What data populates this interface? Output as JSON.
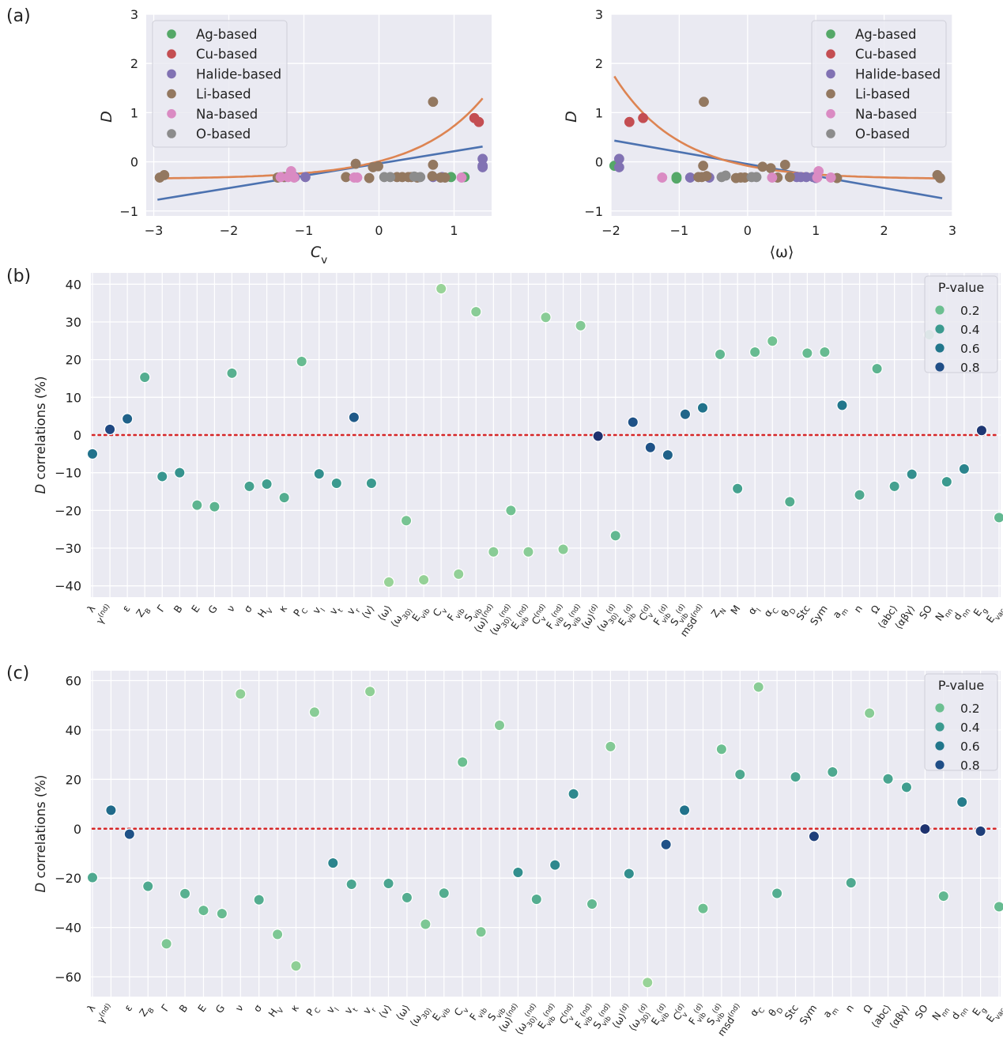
{
  "panel_labels": [
    "(a)",
    "(b)",
    "(c)"
  ],
  "colors": {
    "Ag-based": "#55a868",
    "Cu-based": "#c44e52",
    "Halide-based": "#8172b3",
    "Li-based": "#937860",
    "Na-based": "#da8bc3",
    "O-based": "#8c8c8c",
    "linear_fit": "#4c72b0",
    "exp_fit": "#dd8452",
    "zero_line": "#d62728",
    "plot_bg": "#eaeaf2"
  },
  "pvalue_colormap": [
    "#a6d99a",
    "#6cbf91",
    "#3b9a8f",
    "#21768b",
    "#1f4e87",
    "#1e2f6c"
  ],
  "chart_data": [
    {
      "type": "scatter",
      "panel": "(a)",
      "xlabel": "C_v",
      "ylabel": "D",
      "xlim": [
        -3.1,
        1.5
      ],
      "ylim": [
        -1.1,
        3.0
      ],
      "xticks": [
        -3,
        -2,
        -1,
        0,
        1
      ],
      "yticks": [
        -1,
        0,
        1,
        2,
        3
      ],
      "grid": true,
      "legend_position": "top-left",
      "series": [
        {
          "name": "Ag-based",
          "points": [
            [
              0.96,
              -0.31
            ],
            [
              1.14,
              -0.31
            ]
          ]
        },
        {
          "name": "Cu-based",
          "points": [
            [
              1.27,
              0.89
            ],
            [
              1.33,
              0.81
            ]
          ]
        },
        {
          "name": "Halide-based",
          "points": [
            [
              -1.25,
              -0.31
            ],
            [
              -1.12,
              -0.31
            ],
            [
              -0.98,
              -0.31
            ],
            [
              0.72,
              -0.31
            ],
            [
              0.84,
              -0.31
            ],
            [
              1.38,
              0.06
            ],
            [
              1.38,
              -0.08
            ],
            [
              1.38,
              -0.11
            ]
          ]
        },
        {
          "name": "Li-based",
          "points": [
            [
              -2.92,
              -0.32
            ],
            [
              -2.86,
              -0.27
            ],
            [
              -1.35,
              -0.32
            ],
            [
              -1.27,
              -0.31
            ],
            [
              -0.44,
              -0.31
            ],
            [
              -0.31,
              -0.04
            ],
            [
              -0.13,
              -0.33
            ],
            [
              -0.08,
              -0.11
            ],
            [
              -0.01,
              -0.09
            ],
            [
              0.24,
              -0.31
            ],
            [
              0.31,
              -0.31
            ],
            [
              0.39,
              -0.31
            ],
            [
              0.43,
              -0.31
            ],
            [
              0.51,
              -0.32
            ],
            [
              0.71,
              -0.29
            ],
            [
              0.72,
              -0.06
            ],
            [
              0.72,
              1.22
            ],
            [
              0.82,
              -0.32
            ],
            [
              0.88,
              -0.32
            ]
          ]
        },
        {
          "name": "Na-based",
          "points": [
            [
              -1.31,
              -0.31
            ],
            [
              -1.21,
              -0.31
            ],
            [
              -1.17,
              -0.19
            ],
            [
              -1.13,
              -0.32
            ],
            [
              -0.33,
              -0.32
            ],
            [
              -0.29,
              -0.32
            ],
            [
              1.1,
              -0.32
            ]
          ]
        },
        {
          "name": "O-based",
          "points": [
            [
              0.07,
              -0.31
            ],
            [
              0.15,
              -0.31
            ],
            [
              0.47,
              -0.3
            ],
            [
              0.55,
              -0.31
            ]
          ]
        }
      ],
      "fits": [
        {
          "kind": "linear",
          "x_range": [
            -2.95,
            1.38
          ],
          "y_range": [
            -0.77,
            0.31
          ]
        },
        {
          "kind": "exponential",
          "equation": "D = -0.35 + 0.5*exp(1.1*(x - 0.3))",
          "x_range": [
            -2.95,
            1.38
          ]
        }
      ]
    },
    {
      "type": "scatter",
      "panel": "(a)",
      "xlabel": "⟨ω⟩",
      "ylabel": "D",
      "xlim": [
        -2.0,
        3.0
      ],
      "ylim": [
        -1.1,
        3.0
      ],
      "xticks": [
        -2,
        -1,
        0,
        1,
        2,
        3
      ],
      "yticks": [
        -1,
        0,
        1,
        2,
        3
      ],
      "grid": true,
      "legend_position": "top-right",
      "series": [
        {
          "name": "Ag-based",
          "points": [
            [
              -1.95,
              -0.08
            ],
            [
              -1.04,
              -0.31
            ],
            [
              -1.04,
              -0.34
            ]
          ]
        },
        {
          "name": "Cu-based",
          "points": [
            [
              -1.73,
              0.81
            ],
            [
              -1.53,
              0.89
            ]
          ]
        },
        {
          "name": "Halide-based",
          "points": [
            [
              -1.88,
              0.06
            ],
            [
              -1.88,
              -0.11
            ],
            [
              -0.84,
              -0.32
            ],
            [
              -0.56,
              -0.32
            ],
            [
              0.72,
              -0.31
            ],
            [
              0.78,
              -0.31
            ],
            [
              0.86,
              -0.31
            ],
            [
              0.96,
              -0.31
            ],
            [
              1.0,
              -0.33
            ]
          ]
        },
        {
          "name": "Li-based",
          "points": [
            [
              -0.72,
              -0.31
            ],
            [
              -0.67,
              -0.31
            ],
            [
              -0.65,
              -0.08
            ],
            [
              -0.64,
              1.22
            ],
            [
              -0.6,
              -0.29
            ],
            [
              -0.17,
              -0.33
            ],
            [
              -0.1,
              -0.32
            ],
            [
              -0.04,
              -0.32
            ],
            [
              0.22,
              -0.1
            ],
            [
              0.34,
              -0.13
            ],
            [
              0.44,
              -0.32
            ],
            [
              0.55,
              -0.06
            ],
            [
              0.62,
              -0.31
            ],
            [
              1.31,
              -0.33
            ],
            [
              2.78,
              -0.27
            ],
            [
              2.82,
              -0.33
            ]
          ]
        },
        {
          "name": "Na-based",
          "points": [
            [
              -1.25,
              -0.32
            ],
            [
              0.36,
              -0.32
            ],
            [
              1.02,
              -0.32
            ],
            [
              1.04,
              -0.19
            ],
            [
              1.22,
              -0.32
            ]
          ]
        },
        {
          "name": "O-based",
          "points": [
            [
              -0.38,
              -0.31
            ],
            [
              -0.32,
              -0.28
            ],
            [
              0.06,
              -0.31
            ],
            [
              0.13,
              -0.31
            ]
          ]
        }
      ],
      "fits": [
        {
          "kind": "linear",
          "x_range": [
            -1.95,
            2.85
          ],
          "y_range": [
            0.43,
            -0.74
          ]
        },
        {
          "kind": "exponential",
          "equation": "D = -0.35 + 0.41*exp(-1.05*(x + 0.4))",
          "x_range": [
            -1.95,
            2.85
          ]
        }
      ]
    },
    {
      "type": "scatter",
      "panel": "(b)",
      "ylabel": "D correlations (%)",
      "ylim": [
        -43,
        43
      ],
      "yticks": [
        -40,
        -30,
        -20,
        -10,
        0,
        10,
        20,
        30,
        40
      ],
      "grid": true,
      "reference_line": 0,
      "legend_title": "P-value",
      "legend_entries": [
        0.2,
        0.4,
        0.6,
        0.8
      ],
      "legend_position": "top-right",
      "categories": [
        "λ",
        "γ^(nd)",
        "ε",
        "Z_B",
        "Γ",
        "B",
        "E",
        "G",
        "ν",
        "σ",
        "H_V",
        "κ",
        "P_C",
        "v_l",
        "v_t",
        "v_r",
        "⟨v⟩",
        "⟨ω⟩",
        "⟨ω_30⟩",
        "E_vib",
        "C_v",
        "F_vib",
        "S_vib",
        "⟨ω⟩^(nd)",
        "⟨ω_30⟩^(nd)",
        "E_vib^(nd)",
        "C_v^(nd)",
        "F_vib^(nd)",
        "S_vib^(nd)",
        "⟨ω⟩^(d)",
        "⟨ω_30⟩^(d)",
        "E_vib^(d)",
        "C_v^(d)",
        "F_vib^(d)",
        "S_vib^(d)",
        "msd^(nd)",
        "Z_N",
        "M",
        "α_l",
        "α_C",
        "θ_D",
        "Stc",
        "Sym",
        "a_m",
        "n",
        "Ω",
        "⟨abc⟩",
        "⟨αβγ⟩",
        "SO",
        "N_nn",
        "d_nn",
        "E_g",
        "E_vac"
      ],
      "values": [
        -5,
        1.5,
        4.3,
        15.3,
        -11,
        -10,
        -18.6,
        -19,
        16.4,
        -13.6,
        -13,
        -16.6,
        19.5,
        -10.3,
        -12.8,
        4.7,
        -12.8,
        -39,
        -22.7,
        -38.4,
        38.8,
        -36.9,
        32.7,
        -31,
        -20,
        -31,
        31.2,
        -30.3,
        29,
        -0.3,
        -26.7,
        3.4,
        -3.3,
        -5.3,
        5.5,
        7.2,
        21.4,
        -14.2,
        22,
        24.9,
        -17.7,
        21.7,
        22,
        7.9,
        -15.9,
        17.6,
        -13.6,
        -10.4,
        26.6,
        -12.4,
        -9,
        1.2,
        -21.9
      ],
      "p_values": [
        0.62,
        0.84,
        0.7,
        0.3,
        0.42,
        0.44,
        0.26,
        0.26,
        0.28,
        0.36,
        0.38,
        0.3,
        0.22,
        0.46,
        0.4,
        0.74,
        0.4,
        0.05,
        0.16,
        0.06,
        0.05,
        0.07,
        0.1,
        0.1,
        0.18,
        0.1,
        0.1,
        0.1,
        0.12,
        0.98,
        0.24,
        0.78,
        0.78,
        0.7,
        0.68,
        0.62,
        0.24,
        0.36,
        0.22,
        0.18,
        0.3,
        0.22,
        0.22,
        0.6,
        0.32,
        0.26,
        0.36,
        0.46,
        0.2,
        0.4,
        0.52,
        0.95,
        0.24
      ]
    },
    {
      "type": "scatter",
      "panel": "(c)",
      "ylabel": "D correlations (%)",
      "ylim": [
        -68,
        64
      ],
      "yticks": [
        -60,
        -40,
        -20,
        0,
        20,
        40,
        60
      ],
      "grid": true,
      "reference_line": 0,
      "legend_title": "P-value",
      "legend_entries": [
        0.2,
        0.4,
        0.6,
        0.8
      ],
      "legend_position": "top-right",
      "categories": [
        "λ",
        "γ^(nd)",
        "ε",
        "Z_B",
        "Γ",
        "B",
        "E",
        "G",
        "ν",
        "σ",
        "H_V",
        "κ",
        "P_C",
        "v_l",
        "v_t",
        "v_r",
        "⟨v⟩",
        "⟨ω⟩",
        "⟨ω_30⟩",
        "E_vib",
        "C_v",
        "F_vib",
        "S_vib",
        "⟨ω⟩^(nd)",
        "⟨ω_30⟩^(nd)",
        "E_vib^(nd)",
        "C_v^(nd)",
        "F_vib^(nd)",
        "S_vib^(nd)",
        "⟨ω⟩^(d)",
        "⟨ω_30⟩^(d)",
        "E_vib^(d)",
        "C_v^(d)",
        "F_vib^(d)",
        "S_vib^(d)",
        "msd^(nd)",
        "α_C",
        "θ_D",
        "Stc",
        "Sym",
        "a_m",
        "n",
        "Ω",
        "⟨abc⟩",
        "⟨αβγ⟩",
        "SO",
        "N_nn",
        "d_nn",
        "E_g",
        "E_vac"
      ],
      "values": [
        -19.8,
        7.5,
        -2.2,
        -23.3,
        -46.6,
        -26.3,
        -33.1,
        -34.4,
        54.6,
        -28.8,
        -42.8,
        -55.6,
        47.2,
        -13.9,
        -22.5,
        55.6,
        -22.2,
        -27.9,
        -38.7,
        -26.1,
        27,
        -41.8,
        41.9,
        -17.7,
        -28.6,
        -14.7,
        14.1,
        -30.5,
        33.3,
        -18.2,
        -62.3,
        -6.4,
        7.5,
        -32.3,
        32.2,
        22,
        57.4,
        -26.2,
        21,
        -3.1,
        23,
        -21.9,
        46.8,
        20.2,
        16.8,
        -0.1,
        -27.3,
        10.8,
        -1,
        -31.6
      ],
      "p_values": [
        0.32,
        0.66,
        0.78,
        0.32,
        0.14,
        0.28,
        0.22,
        0.22,
        0.08,
        0.3,
        0.14,
        0.08,
        0.1,
        0.52,
        0.34,
        0.08,
        0.34,
        0.3,
        0.14,
        0.3,
        0.2,
        0.14,
        0.12,
        0.46,
        0.3,
        0.5,
        0.5,
        0.24,
        0.12,
        0.46,
        0.05,
        0.78,
        0.62,
        0.2,
        0.2,
        0.32,
        0.1,
        0.3,
        0.34,
        0.9,
        0.32,
        0.32,
        0.1,
        0.34,
        0.38,
        0.98,
        0.24,
        0.56,
        0.9,
        0.22
      ]
    }
  ]
}
